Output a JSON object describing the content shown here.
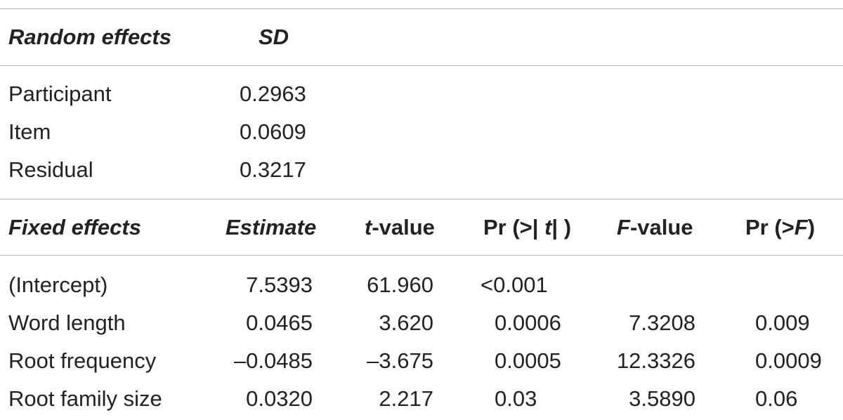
{
  "random_effects": {
    "header": {
      "label": "Random effects",
      "sd": "SD"
    },
    "rows": [
      {
        "name": "Participant",
        "sd": "0.2963"
      },
      {
        "name": "Item",
        "sd": "0.0609"
      },
      {
        "name": "Residual",
        "sd": "0.3217"
      }
    ]
  },
  "fixed_effects": {
    "header": {
      "label": "Fixed effects",
      "estimate": "Estimate",
      "t_pre": "t",
      "t_post": "-value",
      "pr_t_pre": "Pr (>| ",
      "pr_t_mid": "t",
      "pr_t_post": "| )",
      "f_pre": "F",
      "f_post": "-value",
      "pr_f_pre": "Pr (>",
      "pr_f_mid": "F",
      "pr_f_post": ")"
    },
    "rows": [
      {
        "name": "(Intercept)",
        "estimate": "7.5393",
        "t": "61.960",
        "pr_t": "<0.001",
        "f": "",
        "pr_f": ""
      },
      {
        "name": "Word length",
        "estimate": "0.0465",
        "t": "3.620",
        "pr_t": "0.0006",
        "f": "7.3208",
        "pr_f": "0.009"
      },
      {
        "name": "Root frequency",
        "estimate": "–0.0485",
        "t": "–3.675",
        "pr_t": "0.0005",
        "f": "12.3326",
        "pr_f": "0.0009"
      },
      {
        "name": "Root family size",
        "estimate": "0.0320",
        "t": "2.217",
        "pr_t": "0.03",
        "f": "3.5890",
        "pr_f": "0.06"
      }
    ]
  }
}
